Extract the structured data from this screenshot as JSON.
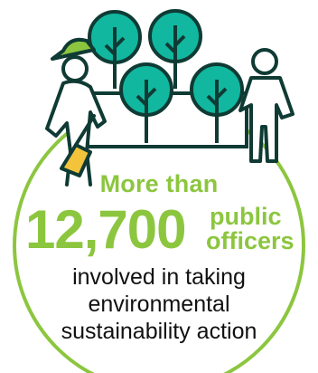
{
  "colors": {
    "accent_green": "#8cc63f",
    "tree_teal": "#12b7a0",
    "outline_dark": "#0f3b34",
    "shovel_yellow": "#f3c33c",
    "text_dark": "#111111"
  },
  "icons": [
    "trees-icon",
    "person-with-shovel-icon",
    "standing-person-icon"
  ],
  "stat": {
    "lead": "More than",
    "number": "12,700",
    "unit_line1": "public",
    "unit_line2": "officers",
    "desc_line1": "involved in taking",
    "desc_line2": "environmental",
    "desc_line3": "sustainability action"
  }
}
